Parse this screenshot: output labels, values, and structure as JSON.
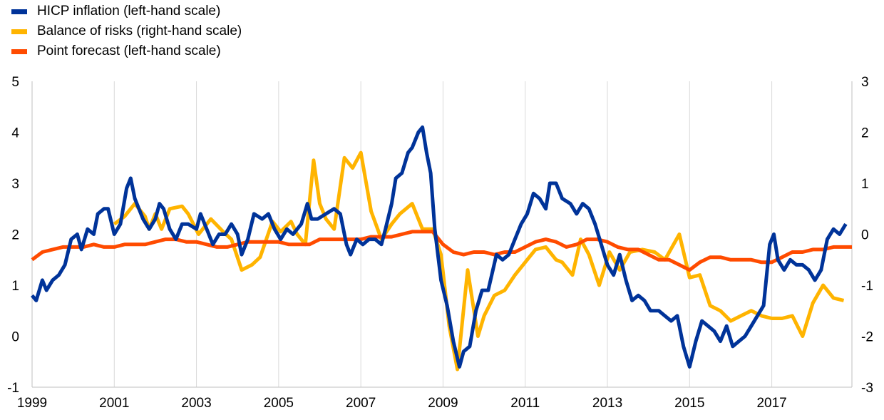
{
  "legend": {
    "items": [
      {
        "label": "HICP inflation (left-hand scale)",
        "color": "#003399"
      },
      {
        "label": "Balance of risks (right-hand scale)",
        "color": "#FFB400"
      },
      {
        "label": "Point forecast (left-hand scale)",
        "color": "#FF4B00"
      }
    ]
  },
  "chart_data": {
    "type": "line",
    "title": "",
    "xlabel": "",
    "ylabel": "",
    "x_ticks": [
      "1999",
      "2001",
      "2003",
      "2005",
      "2007",
      "2009",
      "2011",
      "2013",
      "2015",
      "2017"
    ],
    "xlim": [
      1999.0,
      2018.95
    ],
    "left_axis": {
      "ylim": [
        -1,
        5
      ],
      "ticks": [
        "5",
        "4",
        "3",
        "2",
        "1",
        "0",
        "-1"
      ]
    },
    "right_axis": {
      "ylim": [
        -3,
        3
      ],
      "ticks": [
        "3",
        "2",
        "1",
        "0",
        "-1",
        "-2",
        "-3"
      ]
    },
    "grid": "vertical",
    "legend_position": "top-left",
    "series": [
      {
        "name": "HICP inflation (left-hand scale)",
        "axis": "left",
        "color": "#003399",
        "points": [
          [
            1999.0,
            0.8
          ],
          [
            1999.1,
            0.7
          ],
          [
            1999.25,
            1.1
          ],
          [
            1999.35,
            0.9
          ],
          [
            1999.5,
            1.1
          ],
          [
            1999.65,
            1.2
          ],
          [
            1999.8,
            1.4
          ],
          [
            1999.95,
            1.9
          ],
          [
            2000.1,
            2.0
          ],
          [
            2000.2,
            1.7
          ],
          [
            2000.35,
            2.1
          ],
          [
            2000.5,
            2.0
          ],
          [
            2000.6,
            2.4
          ],
          [
            2000.75,
            2.5
          ],
          [
            2000.85,
            2.5
          ],
          [
            2001.0,
            2.0
          ],
          [
            2001.15,
            2.2
          ],
          [
            2001.3,
            2.9
          ],
          [
            2001.4,
            3.1
          ],
          [
            2001.5,
            2.7
          ],
          [
            2001.6,
            2.5
          ],
          [
            2001.7,
            2.3
          ],
          [
            2001.85,
            2.1
          ],
          [
            2002.0,
            2.3
          ],
          [
            2002.1,
            2.6
          ],
          [
            2002.2,
            2.5
          ],
          [
            2002.35,
            2.1
          ],
          [
            2002.5,
            1.9
          ],
          [
            2002.65,
            2.2
          ],
          [
            2002.8,
            2.2
          ],
          [
            2003.0,
            2.1
          ],
          [
            2003.1,
            2.4
          ],
          [
            2003.25,
            2.1
          ],
          [
            2003.4,
            1.8
          ],
          [
            2003.55,
            2.0
          ],
          [
            2003.7,
            2.0
          ],
          [
            2003.85,
            2.2
          ],
          [
            2004.0,
            2.0
          ],
          [
            2004.1,
            1.6
          ],
          [
            2004.25,
            1.9
          ],
          [
            2004.4,
            2.4
          ],
          [
            2004.6,
            2.3
          ],
          [
            2004.75,
            2.4
          ],
          [
            2004.9,
            2.1
          ],
          [
            2005.05,
            1.9
          ],
          [
            2005.2,
            2.1
          ],
          [
            2005.35,
            2.0
          ],
          [
            2005.55,
            2.2
          ],
          [
            2005.7,
            2.6
          ],
          [
            2005.8,
            2.3
          ],
          [
            2005.95,
            2.3
          ],
          [
            2006.15,
            2.4
          ],
          [
            2006.35,
            2.5
          ],
          [
            2006.5,
            2.4
          ],
          [
            2006.65,
            1.8
          ],
          [
            2006.75,
            1.6
          ],
          [
            2006.9,
            1.9
          ],
          [
            2007.05,
            1.8
          ],
          [
            2007.2,
            1.9
          ],
          [
            2007.35,
            1.9
          ],
          [
            2007.5,
            1.8
          ],
          [
            2007.6,
            2.1
          ],
          [
            2007.75,
            2.6
          ],
          [
            2007.85,
            3.1
          ],
          [
            2008.0,
            3.2
          ],
          [
            2008.15,
            3.6
          ],
          [
            2008.25,
            3.7
          ],
          [
            2008.4,
            4.0
          ],
          [
            2008.5,
            4.1
          ],
          [
            2008.6,
            3.6
          ],
          [
            2008.7,
            3.2
          ],
          [
            2008.8,
            2.1
          ],
          [
            2008.95,
            1.1
          ],
          [
            2009.1,
            0.6
          ],
          [
            2009.25,
            -0.1
          ],
          [
            2009.4,
            -0.6
          ],
          [
            2009.5,
            -0.3
          ],
          [
            2009.65,
            -0.2
          ],
          [
            2009.8,
            0.5
          ],
          [
            2009.95,
            0.9
          ],
          [
            2010.1,
            0.9
          ],
          [
            2010.3,
            1.6
          ],
          [
            2010.45,
            1.5
          ],
          [
            2010.6,
            1.6
          ],
          [
            2010.75,
            1.9
          ],
          [
            2010.9,
            2.2
          ],
          [
            2011.05,
            2.4
          ],
          [
            2011.2,
            2.8
          ],
          [
            2011.35,
            2.7
          ],
          [
            2011.5,
            2.5
          ],
          [
            2011.6,
            3.0
          ],
          [
            2011.75,
            3.0
          ],
          [
            2011.9,
            2.7
          ],
          [
            2012.1,
            2.6
          ],
          [
            2012.25,
            2.4
          ],
          [
            2012.4,
            2.6
          ],
          [
            2012.55,
            2.5
          ],
          [
            2012.7,
            2.2
          ],
          [
            2012.85,
            1.8
          ],
          [
            2013.0,
            1.4
          ],
          [
            2013.15,
            1.2
          ],
          [
            2013.3,
            1.6
          ],
          [
            2013.45,
            1.1
          ],
          [
            2013.6,
            0.7
          ],
          [
            2013.75,
            0.8
          ],
          [
            2013.9,
            0.7
          ],
          [
            2014.05,
            0.5
          ],
          [
            2014.25,
            0.5
          ],
          [
            2014.4,
            0.4
          ],
          [
            2014.55,
            0.3
          ],
          [
            2014.7,
            0.4
          ],
          [
            2014.85,
            -0.2
          ],
          [
            2015.0,
            -0.6
          ],
          [
            2015.15,
            -0.1
          ],
          [
            2015.3,
            0.3
          ],
          [
            2015.45,
            0.2
          ],
          [
            2015.6,
            0.1
          ],
          [
            2015.75,
            -0.1
          ],
          [
            2015.9,
            0.2
          ],
          [
            2016.05,
            -0.2
          ],
          [
            2016.2,
            -0.1
          ],
          [
            2016.35,
            0.0
          ],
          [
            2016.5,
            0.2
          ],
          [
            2016.65,
            0.4
          ],
          [
            2016.8,
            0.6
          ],
          [
            2016.95,
            1.8
          ],
          [
            2017.05,
            2.0
          ],
          [
            2017.15,
            1.5
          ],
          [
            2017.3,
            1.3
          ],
          [
            2017.45,
            1.5
          ],
          [
            2017.6,
            1.4
          ],
          [
            2017.75,
            1.4
          ],
          [
            2017.9,
            1.3
          ],
          [
            2018.05,
            1.1
          ],
          [
            2018.2,
            1.3
          ],
          [
            2018.35,
            1.9
          ],
          [
            2018.5,
            2.1
          ],
          [
            2018.65,
            2.0
          ],
          [
            2018.8,
            2.2
          ]
        ]
      },
      {
        "name": "Balance of risks (right-hand scale)",
        "axis": "right",
        "color": "#FFB400",
        "points": [
          [
            2001.0,
            0.2
          ],
          [
            2001.25,
            0.35
          ],
          [
            2001.5,
            0.6
          ],
          [
            2001.75,
            0.35
          ],
          [
            2001.85,
            0.1
          ],
          [
            2002.0,
            0.4
          ],
          [
            2002.15,
            0.1
          ],
          [
            2002.35,
            0.5
          ],
          [
            2002.65,
            0.55
          ],
          [
            2002.8,
            0.4
          ],
          [
            2003.05,
            0.0
          ],
          [
            2003.35,
            0.3
          ],
          [
            2003.65,
            0.05
          ],
          [
            2003.85,
            -0.1
          ],
          [
            2004.1,
            -0.7
          ],
          [
            2004.35,
            -0.6
          ],
          [
            2004.55,
            -0.45
          ],
          [
            2004.85,
            0.25
          ],
          [
            2005.05,
            0.05
          ],
          [
            2005.3,
            0.25
          ],
          [
            2005.45,
            0.0
          ],
          [
            2005.65,
            -0.2
          ],
          [
            2005.85,
            1.45
          ],
          [
            2006.0,
            0.6
          ],
          [
            2006.15,
            0.3
          ],
          [
            2006.35,
            0.1
          ],
          [
            2006.6,
            1.5
          ],
          [
            2006.8,
            1.3
          ],
          [
            2007.0,
            1.6
          ],
          [
            2007.25,
            0.45
          ],
          [
            2007.5,
            -0.1
          ],
          [
            2007.75,
            0.2
          ],
          [
            2007.95,
            0.4
          ],
          [
            2008.25,
            0.6
          ],
          [
            2008.5,
            0.1
          ],
          [
            2008.75,
            0.1
          ],
          [
            2008.95,
            -0.4
          ],
          [
            2009.15,
            -1.8
          ],
          [
            2009.35,
            -2.65
          ],
          [
            2009.6,
            -0.7
          ],
          [
            2009.85,
            -2.0
          ],
          [
            2010.0,
            -1.6
          ],
          [
            2010.25,
            -1.2
          ],
          [
            2010.5,
            -1.1
          ],
          [
            2010.75,
            -0.8
          ],
          [
            2011.0,
            -0.55
          ],
          [
            2011.25,
            -0.3
          ],
          [
            2011.5,
            -0.25
          ],
          [
            2011.75,
            -0.5
          ],
          [
            2011.9,
            -0.55
          ],
          [
            2012.15,
            -0.8
          ],
          [
            2012.35,
            -0.1
          ],
          [
            2012.55,
            -0.4
          ],
          [
            2012.8,
            -1.0
          ],
          [
            2013.05,
            -0.35
          ],
          [
            2013.3,
            -0.7
          ],
          [
            2013.55,
            -0.35
          ],
          [
            2013.85,
            -0.3
          ],
          [
            2014.15,
            -0.35
          ],
          [
            2014.4,
            -0.5
          ],
          [
            2014.75,
            0.0
          ],
          [
            2015.0,
            -0.85
          ],
          [
            2015.25,
            -0.8
          ],
          [
            2015.5,
            -1.4
          ],
          [
            2015.75,
            -1.5
          ],
          [
            2016.0,
            -1.7
          ],
          [
            2016.25,
            -1.6
          ],
          [
            2016.5,
            -1.5
          ],
          [
            2016.75,
            -1.6
          ],
          [
            2017.0,
            -1.65
          ],
          [
            2017.25,
            -1.65
          ],
          [
            2017.5,
            -1.6
          ],
          [
            2017.75,
            -2.0
          ],
          [
            2018.0,
            -1.35
          ],
          [
            2018.25,
            -1.0
          ],
          [
            2018.5,
            -1.25
          ],
          [
            2018.75,
            -1.3
          ]
        ]
      },
      {
        "name": "Point forecast (left-hand scale)",
        "axis": "left",
        "color": "#FF4B00",
        "points": [
          [
            1999.0,
            1.5
          ],
          [
            1999.25,
            1.65
          ],
          [
            1999.5,
            1.7
          ],
          [
            1999.75,
            1.75
          ],
          [
            2000.0,
            1.75
          ],
          [
            2000.25,
            1.75
          ],
          [
            2000.5,
            1.8
          ],
          [
            2000.75,
            1.75
          ],
          [
            2001.0,
            1.75
          ],
          [
            2001.25,
            1.8
          ],
          [
            2001.5,
            1.8
          ],
          [
            2001.75,
            1.8
          ],
          [
            2002.0,
            1.85
          ],
          [
            2002.25,
            1.9
          ],
          [
            2002.5,
            1.9
          ],
          [
            2002.75,
            1.85
          ],
          [
            2003.0,
            1.85
          ],
          [
            2003.25,
            1.8
          ],
          [
            2003.5,
            1.75
          ],
          [
            2003.75,
            1.75
          ],
          [
            2004.0,
            1.8
          ],
          [
            2004.25,
            1.85
          ],
          [
            2004.5,
            1.85
          ],
          [
            2004.75,
            1.85
          ],
          [
            2005.0,
            1.85
          ],
          [
            2005.25,
            1.8
          ],
          [
            2005.5,
            1.8
          ],
          [
            2005.75,
            1.8
          ],
          [
            2006.0,
            1.9
          ],
          [
            2006.25,
            1.9
          ],
          [
            2006.5,
            1.9
          ],
          [
            2006.75,
            1.9
          ],
          [
            2007.0,
            1.9
          ],
          [
            2007.25,
            1.95
          ],
          [
            2007.5,
            1.95
          ],
          [
            2007.75,
            1.95
          ],
          [
            2008.0,
            2.0
          ],
          [
            2008.25,
            2.05
          ],
          [
            2008.5,
            2.05
          ],
          [
            2008.75,
            2.05
          ],
          [
            2009.0,
            1.8
          ],
          [
            2009.25,
            1.65
          ],
          [
            2009.5,
            1.6
          ],
          [
            2009.75,
            1.65
          ],
          [
            2010.0,
            1.65
          ],
          [
            2010.25,
            1.6
          ],
          [
            2010.5,
            1.65
          ],
          [
            2010.75,
            1.65
          ],
          [
            2011.0,
            1.75
          ],
          [
            2011.25,
            1.85
          ],
          [
            2011.5,
            1.9
          ],
          [
            2011.75,
            1.85
          ],
          [
            2012.0,
            1.75
          ],
          [
            2012.25,
            1.8
          ],
          [
            2012.5,
            1.9
          ],
          [
            2012.75,
            1.9
          ],
          [
            2013.0,
            1.85
          ],
          [
            2013.25,
            1.75
          ],
          [
            2013.5,
            1.7
          ],
          [
            2013.75,
            1.7
          ],
          [
            2014.0,
            1.6
          ],
          [
            2014.25,
            1.5
          ],
          [
            2014.5,
            1.5
          ],
          [
            2014.75,
            1.4
          ],
          [
            2015.0,
            1.3
          ],
          [
            2015.25,
            1.45
          ],
          [
            2015.5,
            1.55
          ],
          [
            2015.75,
            1.55
          ],
          [
            2016.0,
            1.5
          ],
          [
            2016.25,
            1.5
          ],
          [
            2016.5,
            1.5
          ],
          [
            2016.75,
            1.45
          ],
          [
            2017.0,
            1.45
          ],
          [
            2017.25,
            1.55
          ],
          [
            2017.5,
            1.65
          ],
          [
            2017.75,
            1.65
          ],
          [
            2018.0,
            1.7
          ],
          [
            2018.25,
            1.7
          ],
          [
            2018.5,
            1.75
          ],
          [
            2018.75,
            1.75
          ],
          [
            2018.95,
            1.75
          ]
        ]
      }
    ]
  }
}
